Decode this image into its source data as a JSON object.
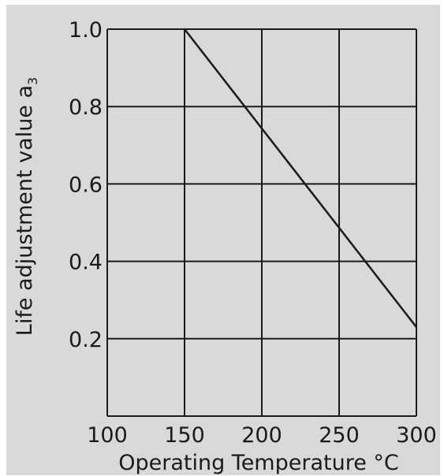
{
  "chart_data": {
    "type": "line",
    "title": "",
    "xlabel": "Operating Temperature °C",
    "ylabel": "Life adjustment value a",
    "ylabel_subscript": "3",
    "xlim": [
      100,
      300
    ],
    "ylim": [
      0.0,
      1.0
    ],
    "x_ticks": [
      "100",
      "150",
      "200",
      "250",
      "300"
    ],
    "y_ticks": [
      "1.0",
      "0.8",
      "0.6",
      "0.4",
      "0.2"
    ],
    "grid": true,
    "series": [
      {
        "x": [
          150,
          300
        ],
        "y": [
          1.0,
          0.23
        ]
      }
    ],
    "colors": {
      "background": "#d9d9d9",
      "plot_area": "#d9d9d9",
      "lines": "#1a1a1a"
    }
  }
}
